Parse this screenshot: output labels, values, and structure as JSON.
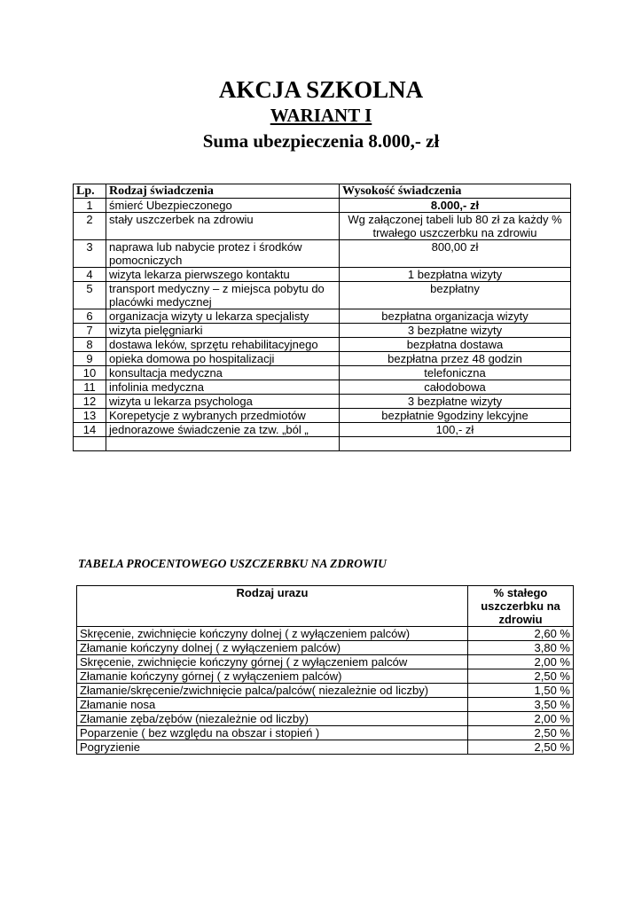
{
  "header": {
    "title": "AKCJA SZKOLNA",
    "variant": "WARIANT  I ",
    "sum": "Suma ubezpieczenia  8.000,- zł"
  },
  "benefits_table": {
    "headers": [
      "Lp.",
      "Rodzaj świadczenia",
      "Wysokość świadczenia"
    ],
    "rows": [
      {
        "lp": "1",
        "type": "śmierć Ubezpieczonego",
        "amount": "8.000,- zł",
        "bold": true
      },
      {
        "lp": "2",
        "type": "stały uszczerbek na zdrowiu",
        "amount": "Wg załączonej tabeli  lub  80 zł za każdy %  trwałego uszczerbku na zdrowiu"
      },
      {
        "lp": "3",
        "type": "naprawa lub nabycie protez i środków pomocniczych",
        "amount": "800,00 zł"
      },
      {
        "lp": "4",
        "type": "wizyta lekarza pierwszego kontaktu",
        "amount": "1 bezpłatna wizyty"
      },
      {
        "lp": "5",
        "type": "transport medyczny – z miejsca pobytu do placówki medycznej",
        "amount": "bezpłatny"
      },
      {
        "lp": "6",
        "type": "organizacja wizyty u lekarza specjalisty",
        "amount": "bezpłatna organizacja wizyty"
      },
      {
        "lp": "7",
        "type": "wizyta pielęgniarki",
        "amount": "3 bezpłatne wizyty"
      },
      {
        "lp": "8",
        "type": "dostawa leków, sprzętu rehabilitacyjnego",
        "amount": "bezpłatna dostawa"
      },
      {
        "lp": "9",
        "type": "opieka domowa po hospitalizacji",
        "amount": "bezpłatna przez 48  godzin"
      },
      {
        "lp": "10",
        "type": "konsultacja medyczna",
        "amount": "telefoniczna"
      },
      {
        "lp": "11",
        "type": "infolinia medyczna",
        "amount": "całodobowa"
      },
      {
        "lp": "12",
        "type": "wizyta u lekarza psychologa",
        "amount": "3 bezpłatne   wizyty"
      },
      {
        "lp": "13",
        "type": "Korepetycje z wybranych przedmiotów",
        "amount": "bezpłatnie 9godziny lekcyjne"
      },
      {
        "lp": "14",
        "type": "jednorazowe świadczenie za  tzw. „ból „",
        "amount": "100,- zł"
      },
      {
        "lp": "",
        "type": "",
        "amount": ""
      }
    ]
  },
  "injury_table": {
    "heading": "TABELA  PROCENTOWEGO USZCZERBKU NA ZDROWIU",
    "headers": [
      "Rodzaj urazu",
      "% stałego uszczerbku na zdrowiu"
    ],
    "rows": [
      {
        "injury": "Skręcenie, zwichnięcie kończyny dolnej ( z wyłączeniem palców)",
        "percent": "2,60 %"
      },
      {
        "injury": "Złamanie kończyny dolnej ( z wyłączeniem palców)",
        "percent": "3,80 %"
      },
      {
        "injury": "Skręcenie, zwichnięcie kończyny górnej ( z wyłączeniem palców",
        "percent": "2,00 %"
      },
      {
        "injury": "Złamanie kończyny górnej ( z wyłączeniem palców)",
        "percent": "2,50 %"
      },
      {
        "injury": "Złamanie/skręcenie/zwichnięcie palca/palców( niezależnie od liczby)",
        "percent": "1,50 %"
      },
      {
        "injury": "Złamanie nosa",
        "percent": "3,50 %"
      },
      {
        "injury": "Złamanie zęba/zębów (niezależnie od liczby)",
        "percent": "2,00 %"
      },
      {
        "injury": "Poparzenie ( bez względu na obszar i stopień )",
        "percent": "2,50 %"
      },
      {
        "injury": "Pogryzienie",
        "percent": "2,50 %"
      }
    ]
  }
}
